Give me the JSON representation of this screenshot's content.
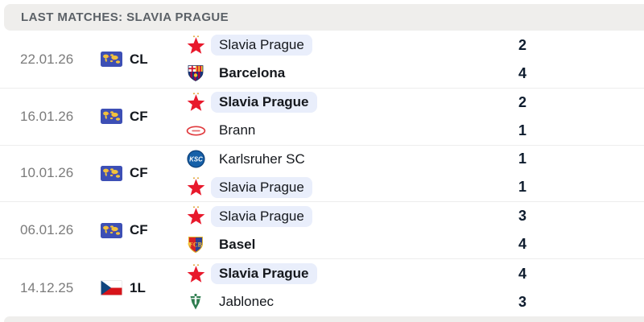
{
  "header": {
    "title": "LAST MATCHES: SLAVIA PRAGUE"
  },
  "matches": [
    {
      "date": "22.01.26",
      "competition": {
        "code": "CL",
        "flag": "world-map"
      },
      "teams": [
        {
          "name": "Slavia Prague",
          "logo": "slavia-prague",
          "score": 2,
          "winner": false,
          "highlighted": true
        },
        {
          "name": "Barcelona",
          "logo": "barcelona",
          "score": 4,
          "winner": true,
          "highlighted": false
        }
      ]
    },
    {
      "date": "16.01.26",
      "competition": {
        "code": "CF",
        "flag": "world-map"
      },
      "teams": [
        {
          "name": "Slavia Prague",
          "logo": "slavia-prague",
          "score": 2,
          "winner": true,
          "highlighted": true
        },
        {
          "name": "Brann",
          "logo": "brann",
          "score": 1,
          "winner": false,
          "highlighted": false
        }
      ]
    },
    {
      "date": "10.01.26",
      "competition": {
        "code": "CF",
        "flag": "world-map"
      },
      "teams": [
        {
          "name": "Karlsruher SC",
          "logo": "karlsruher-sc",
          "score": 1,
          "winner": false,
          "highlighted": false
        },
        {
          "name": "Slavia Prague",
          "logo": "slavia-prague",
          "score": 1,
          "winner": false,
          "highlighted": true
        }
      ]
    },
    {
      "date": "06.01.26",
      "competition": {
        "code": "CF",
        "flag": "world-map"
      },
      "teams": [
        {
          "name": "Slavia Prague",
          "logo": "slavia-prague",
          "score": 3,
          "winner": false,
          "highlighted": true
        },
        {
          "name": "Basel",
          "logo": "basel",
          "score": 4,
          "winner": true,
          "highlighted": false
        }
      ]
    },
    {
      "date": "14.12.25",
      "competition": {
        "code": "1L",
        "flag": "czech-flag"
      },
      "teams": [
        {
          "name": "Slavia Prague",
          "logo": "slavia-prague",
          "score": 4,
          "winner": true,
          "highlighted": true
        },
        {
          "name": "Jablonec",
          "logo": "jablonec",
          "score": 3,
          "winner": false,
          "highlighted": false
        }
      ]
    }
  ],
  "colors": {
    "header_bg": "#efeeec",
    "highlight_bg": "#e9eefb",
    "score_text": "#0e1c2e",
    "slavia_red": "#e8192c",
    "divider": "#ededed"
  }
}
